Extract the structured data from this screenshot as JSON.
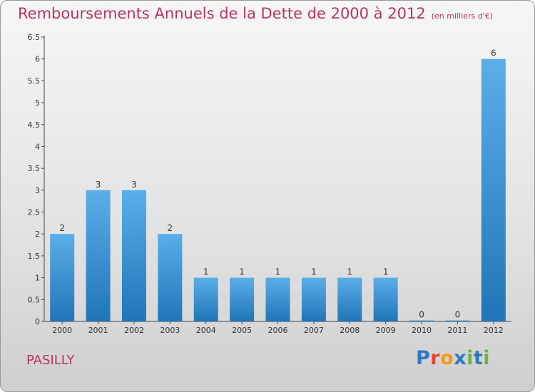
{
  "header": {
    "title": "Remboursements Annuels de la Dette de 2000 à 2012",
    "unit_note": "(en milliers d'€)"
  },
  "footer": {
    "commune": "PASILLY",
    "logo_letters": [
      "P",
      "r",
      "o",
      "x",
      "i",
      "t",
      "i"
    ],
    "logo_colors": [
      "#2b79c2",
      "#e6432f",
      "#f39a1d",
      "#2b79c2",
      "#6cb33f",
      "#2b79c2",
      "#6cb33f"
    ]
  },
  "colors": {
    "title": "#b5365f",
    "bar_top": "#5aaee9",
    "bar_bottom": "#2075b8",
    "axis": "#444444"
  },
  "chart_data": {
    "type": "bar",
    "title": "Remboursements Annuels de la Dette de 2000 à 2012",
    "subtitle": "(en milliers d'€)",
    "categories": [
      "2000",
      "2001",
      "2002",
      "2003",
      "2004",
      "2005",
      "2006",
      "2007",
      "2008",
      "2009",
      "2010",
      "2011",
      "2012"
    ],
    "values": [
      2,
      3,
      3,
      2,
      1,
      1,
      1,
      1,
      1,
      1,
      0,
      0,
      6
    ],
    "data_labels": [
      "2",
      "3",
      "3",
      "2",
      "1",
      "1",
      "1",
      "1",
      "1",
      "1",
      "0",
      "0",
      "6"
    ],
    "y_ticks": [
      0,
      0.5,
      1,
      1.5,
      2,
      2.5,
      3,
      3.5,
      4,
      4.5,
      5,
      5.5,
      6,
      6.5
    ],
    "y_tick_labels": [
      "0",
      "0.5",
      "1",
      "1.5",
      "2",
      "2.5",
      "3",
      "3.5",
      "4",
      "4.5",
      "5",
      "5.5",
      "6",
      "6.5"
    ],
    "ylim": [
      0,
      6.5
    ],
    "xlabel": "",
    "ylabel": "",
    "grid": false,
    "legend": "none"
  }
}
